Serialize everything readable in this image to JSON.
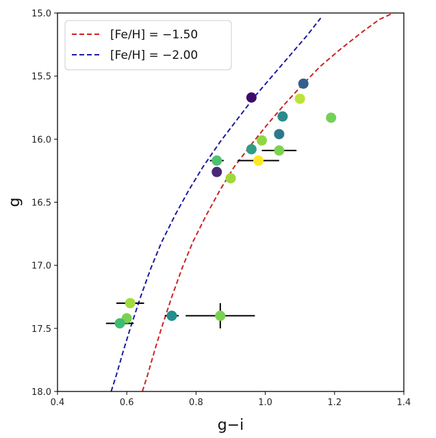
{
  "chart_data": {
    "type": "scatter",
    "xlabel": "g−i",
    "ylabel": "g",
    "xlim": [
      0.4,
      1.4
    ],
    "ylim": [
      18.0,
      15.0
    ],
    "y_inverted": true,
    "xticks": [
      "0.4",
      "0.6",
      "0.8",
      "1.0",
      "1.2",
      "1.4"
    ],
    "yticks": [
      "15.0",
      "15.5",
      "16.0",
      "16.5",
      "17.0",
      "17.5",
      "18.0"
    ],
    "grid": false,
    "legend": {
      "placement": "top-left",
      "entries": [
        {
          "label": "[Fe/H] = −1.50",
          "color": "#cc2222",
          "style": "dashed"
        },
        {
          "label": "[Fe/H] = −2.00",
          "color": "#1a1aa0",
          "style": "dashed"
        }
      ]
    },
    "curves": [
      {
        "name": "[Fe/H] = −1.50",
        "color": "#cc2222",
        "x": [
          0.645,
          0.66,
          0.68,
          0.7,
          0.73,
          0.76,
          0.79,
          0.83,
          0.87,
          0.91,
          0.96,
          1.01,
          1.06,
          1.11,
          1.16,
          1.22,
          1.28,
          1.33,
          1.37
        ],
        "y": [
          18.0,
          17.87,
          17.68,
          17.5,
          17.25,
          17.02,
          16.82,
          16.6,
          16.4,
          16.22,
          16.04,
          15.87,
          15.71,
          15.56,
          15.42,
          15.28,
          15.15,
          15.05,
          15.0
        ]
      },
      {
        "name": "[Fe/H] = −2.00",
        "color": "#1a1aa0",
        "x": [
          0.555,
          0.57,
          0.59,
          0.61,
          0.64,
          0.67,
          0.7,
          0.74,
          0.78,
          0.82,
          0.87,
          0.92,
          0.97,
          1.02,
          1.07,
          1.12,
          1.16
        ],
        "y": [
          18.0,
          17.87,
          17.68,
          17.5,
          17.25,
          17.02,
          16.82,
          16.6,
          16.4,
          16.22,
          16.02,
          15.84,
          15.66,
          15.5,
          15.34,
          15.18,
          15.04
        ]
      }
    ],
    "points": [
      {
        "x": 0.96,
        "y": 15.67,
        "color": "#3e0a6a"
      },
      {
        "x": 1.11,
        "y": 15.56,
        "color": "#33608c"
      },
      {
        "x": 1.1,
        "y": 15.68,
        "color": "#bde33a"
      },
      {
        "x": 1.05,
        "y": 15.82,
        "color": "#2a8a8c"
      },
      {
        "x": 1.19,
        "y": 15.83,
        "color": "#73d15a"
      },
      {
        "x": 1.04,
        "y": 15.96,
        "color": "#2a7a8c"
      },
      {
        "x": 0.99,
        "y": 16.01,
        "color": "#8fd645"
      },
      {
        "x": 0.96,
        "y": 16.08,
        "color": "#2e9e86"
      },
      {
        "x": 1.04,
        "y": 16.09,
        "color": "#7cd250",
        "xerr": 0.05
      },
      {
        "x": 0.86,
        "y": 16.17,
        "color": "#4ec172",
        "xerr": 0.02
      },
      {
        "x": 0.98,
        "y": 16.17,
        "color": "#fde725",
        "xerr": 0.06
      },
      {
        "x": 0.86,
        "y": 16.26,
        "color": "#482878"
      },
      {
        "x": 0.9,
        "y": 16.31,
        "color": "#9dd93b"
      },
      {
        "x": 0.61,
        "y": 17.3,
        "color": "#9fdc3c",
        "xerr": 0.04
      },
      {
        "x": 0.6,
        "y": 17.42,
        "color": "#7ad151"
      },
      {
        "x": 0.58,
        "y": 17.46,
        "color": "#3dbc74",
        "xerr": 0.04
      },
      {
        "x": 0.73,
        "y": 17.4,
        "color": "#218f8d",
        "xerr": 0.02
      },
      {
        "x": 0.87,
        "y": 17.4,
        "color": "#7ad151",
        "xerr": 0.1,
        "yerr": 0.1
      }
    ]
  }
}
